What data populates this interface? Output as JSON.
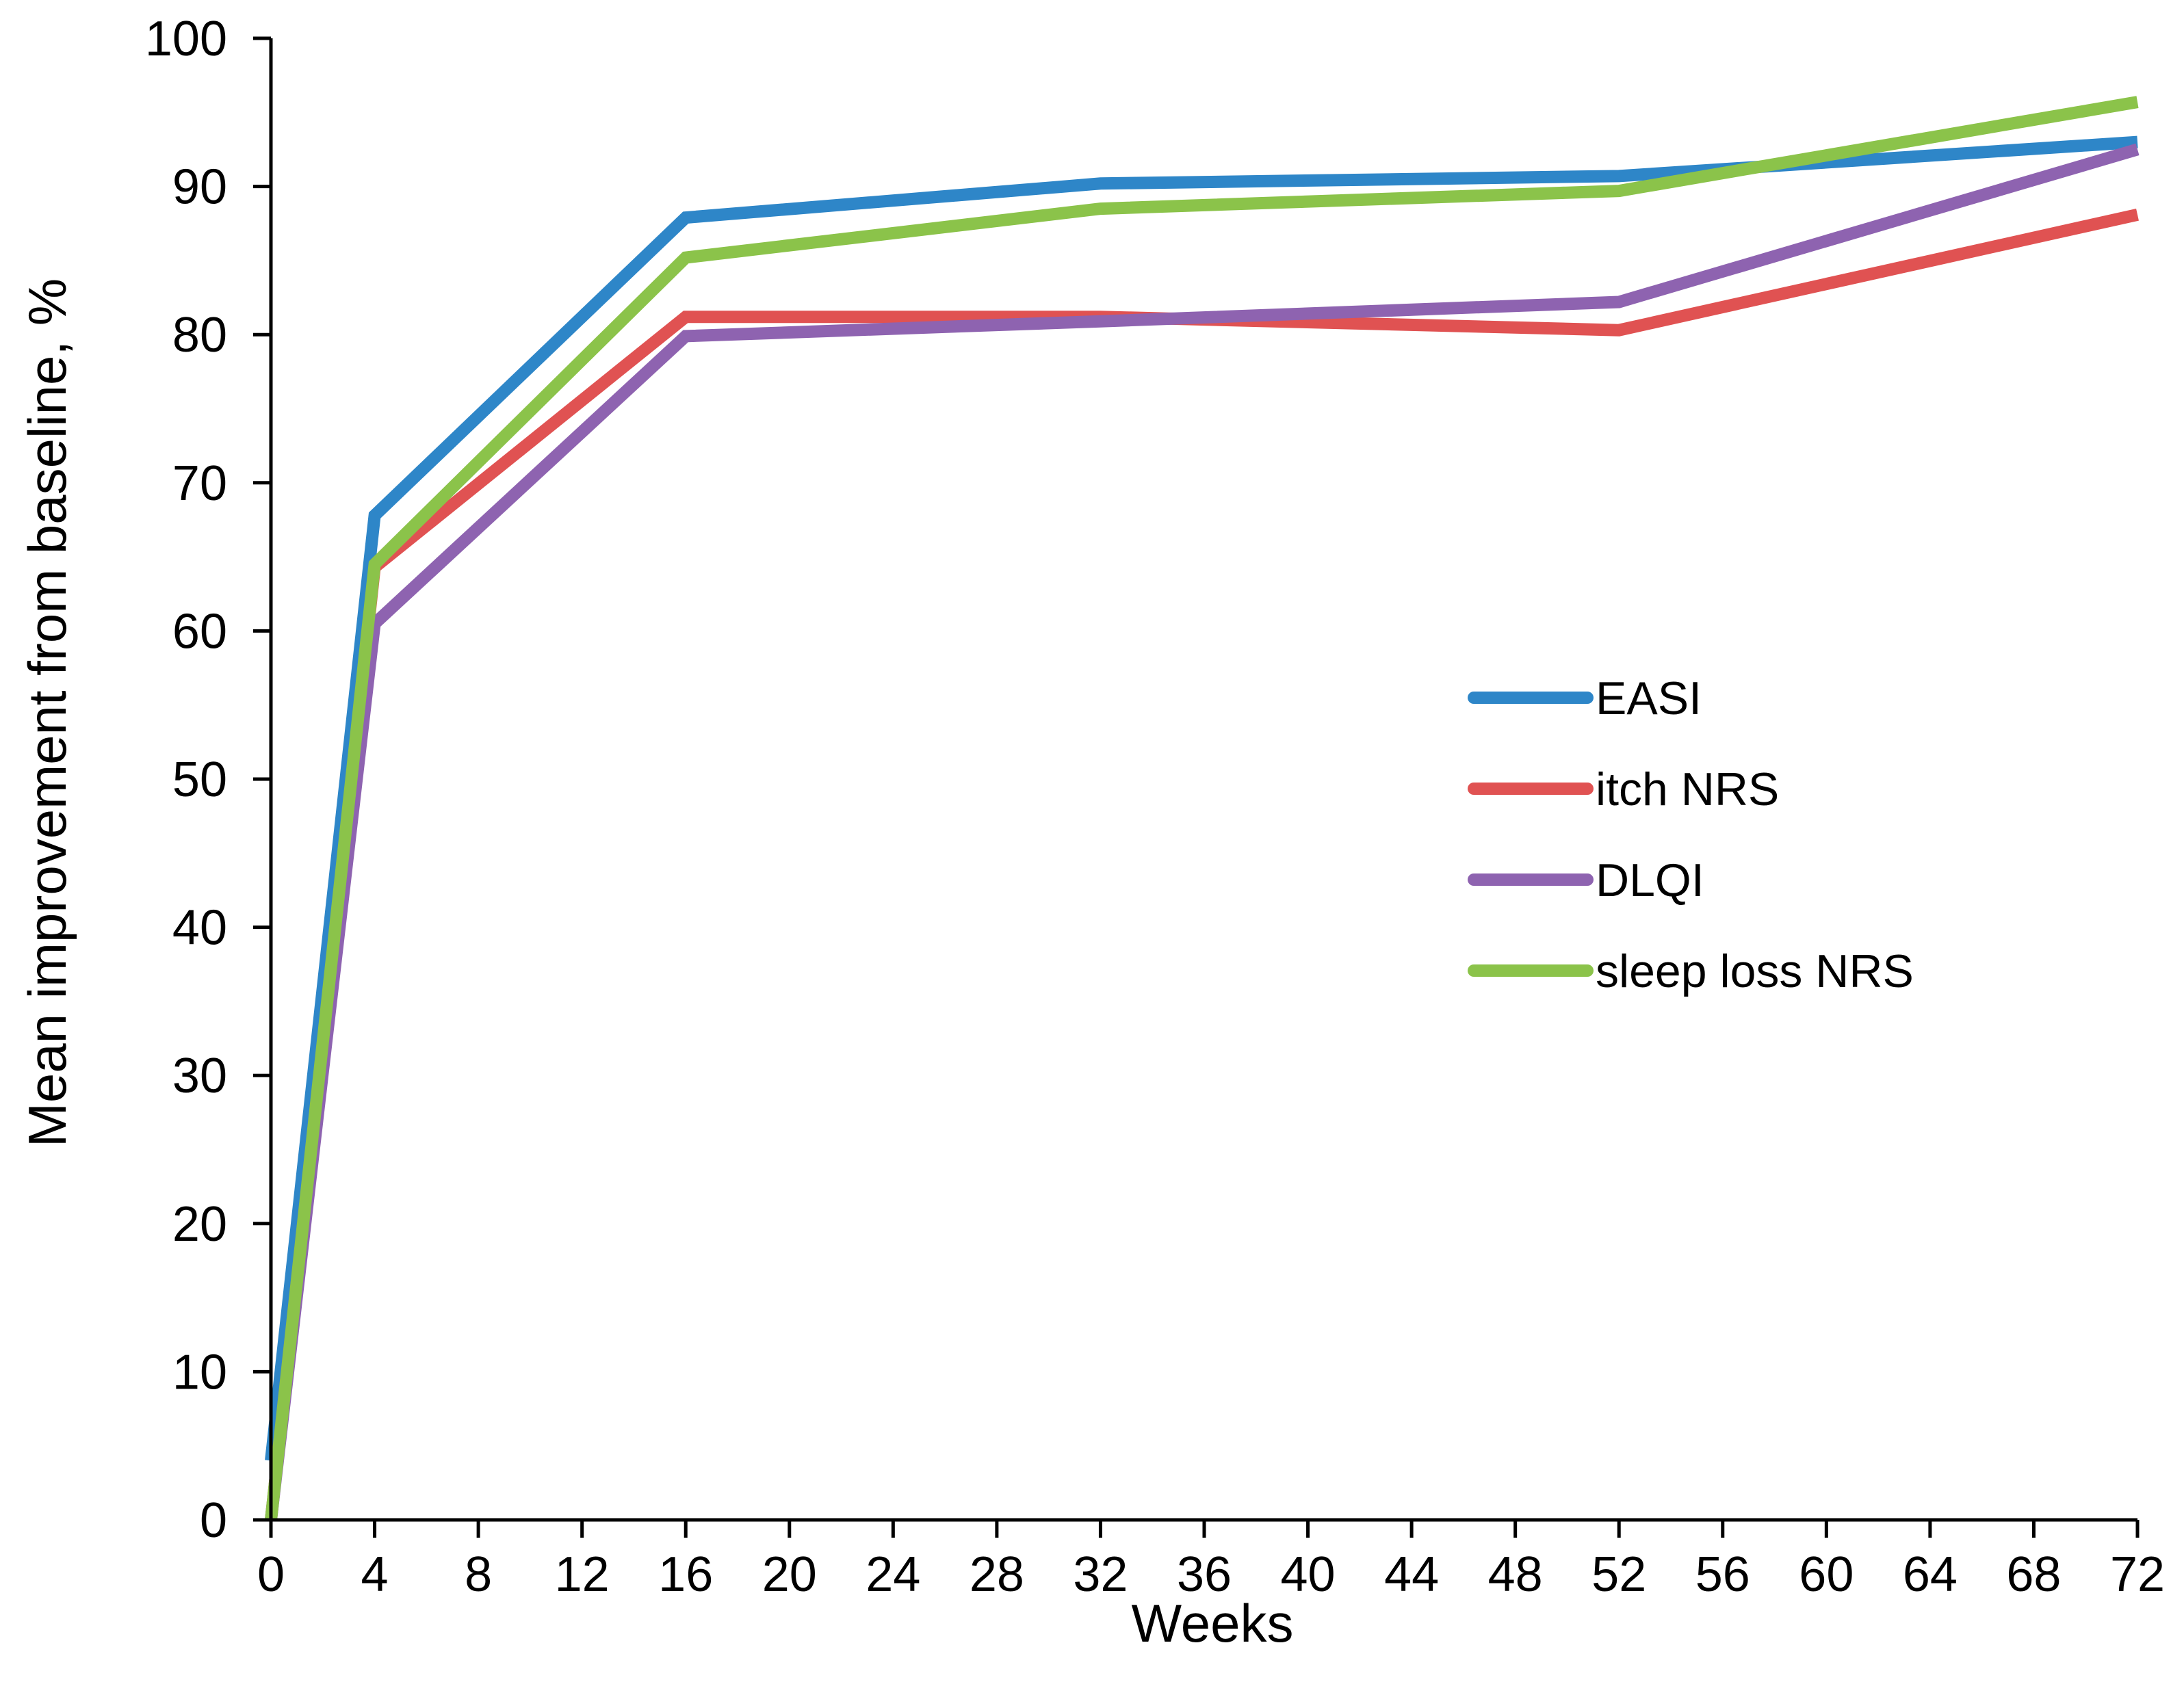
{
  "chart_data": {
    "type": "line",
    "title": "",
    "xlabel": "Weeks",
    "ylabel": "Mean improvement from baseline, %",
    "xlim": [
      0,
      72
    ],
    "ylim": [
      0,
      100
    ],
    "x_ticks": [
      0,
      4,
      8,
      12,
      16,
      20,
      24,
      28,
      32,
      36,
      40,
      44,
      48,
      52,
      56,
      60,
      64,
      68,
      72
    ],
    "y_ticks": [
      0,
      10,
      20,
      30,
      40,
      50,
      60,
      70,
      80,
      90,
      100
    ],
    "grid": false,
    "legend_position": "right",
    "series": [
      {
        "name": "EASI",
        "color": "#2E86C8",
        "x": [
          0,
          4,
          16,
          32,
          52,
          72
        ],
        "values": [
          4,
          67.8,
          87.9,
          90.2,
          90.7,
          93.0
        ]
      },
      {
        "name": "itch NRS",
        "color": "#E05252",
        "x": [
          0,
          4,
          16,
          32,
          52,
          72
        ],
        "values": [
          0,
          64.3,
          81.2,
          81.2,
          80.3,
          88.1
        ]
      },
      {
        "name": "DLQI",
        "color": "#8E63B0",
        "x": [
          0,
          4,
          16,
          32,
          52,
          72
        ],
        "values": [
          0,
          60.5,
          79.9,
          80.9,
          82.2,
          92.5
        ]
      },
      {
        "name": "sleep loss NRS",
        "color": "#8BC34A",
        "x": [
          0,
          4,
          16,
          32,
          52,
          72
        ],
        "values": [
          0,
          64.5,
          85.2,
          88.5,
          89.7,
          95.7
        ]
      }
    ]
  }
}
